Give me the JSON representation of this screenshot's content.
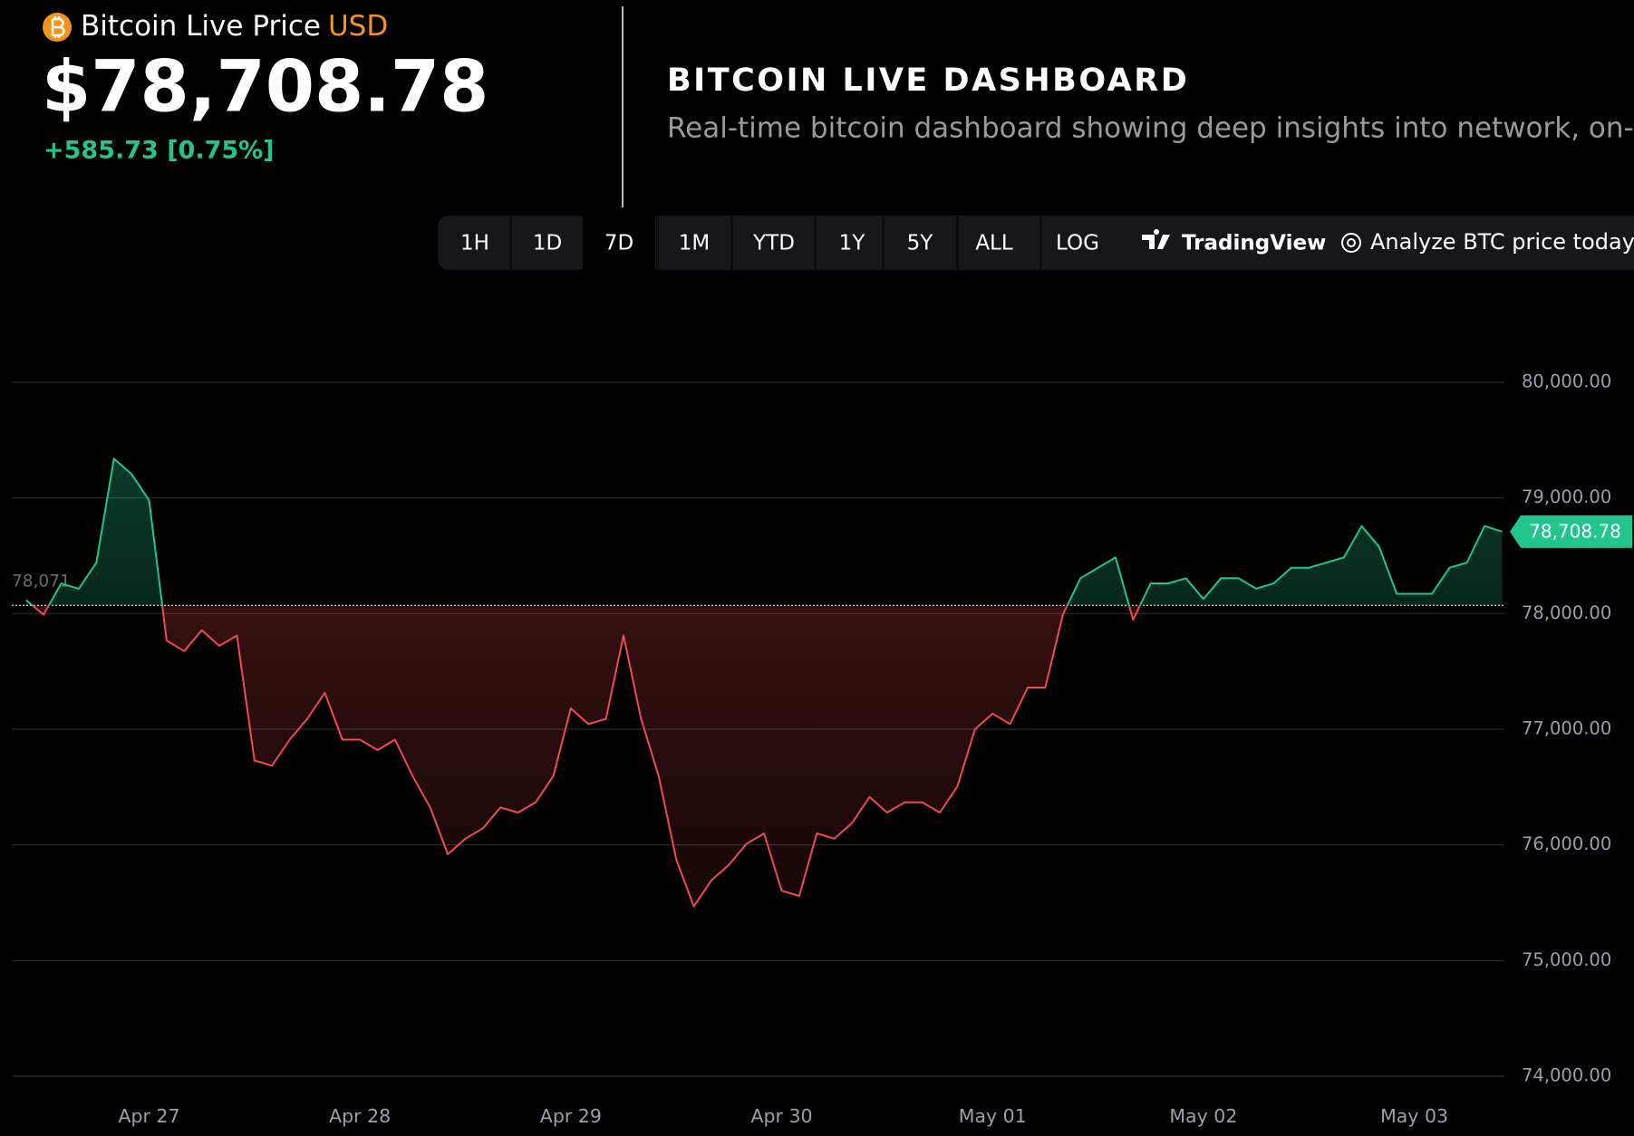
{
  "header": {
    "asset": "Bitcoin Live Price",
    "currency": "USD",
    "price": "$78,708.78",
    "change": "+585.73 [0.75%]"
  },
  "dashboard": {
    "title": "BITCOIN LIVE DASHBOARD",
    "subtitle": "Real-time bitcoin dashboard showing deep insights into network, on-cha"
  },
  "toolbar": {
    "ranges": [
      "1H",
      "1D",
      "7D",
      "1M",
      "YTD",
      "1Y",
      "5Y",
      "ALL",
      "LOG"
    ],
    "selected_range": "7D",
    "tradingview": "TradingView",
    "analyze": "Analyze BTC price today"
  },
  "chart_data": {
    "type": "line",
    "series": [
      {
        "name": "BTC/USD",
        "color": "#22c58b",
        "below_color": "#f2494e",
        "values": [
          78117,
          77990,
          78260,
          78215,
          78440,
          79340,
          79207,
          78980,
          77766,
          77676,
          77856,
          77721,
          77811,
          76730,
          76685,
          76910,
          77090,
          77315,
          76910,
          76910,
          76820,
          76910,
          76595,
          76324,
          75919,
          76054,
          76144,
          76324,
          76279,
          76369,
          76595,
          77180,
          77045,
          77090,
          77811,
          77090,
          76595,
          75874,
          75468,
          75694,
          75829,
          76009,
          76099,
          75604,
          75559,
          76099,
          76054,
          76189,
          76414,
          76279,
          76369,
          76369,
          76279,
          76505,
          77000,
          77135,
          77045,
          77360,
          77360,
          77991,
          78306,
          78396,
          78486,
          77946,
          78261,
          78261,
          78306,
          78126,
          78306,
          78306,
          78216,
          78261,
          78396,
          78396,
          78441,
          78486,
          78757,
          78577,
          78171,
          78171,
          78171,
          78396,
          78441,
          78757,
          78708.78
        ]
      }
    ],
    "baseline": {
      "value": 78071,
      "label": "78,071"
    },
    "last_price": {
      "value": 78708.78,
      "label": "78,708.78"
    },
    "xlim": [
      0,
      84
    ],
    "xticks": [
      {
        "value": 7,
        "label": "Apr 27"
      },
      {
        "value": 19,
        "label": "Apr 28"
      },
      {
        "value": 31,
        "label": "Apr 29"
      },
      {
        "value": 43,
        "label": "Apr 30"
      },
      {
        "value": 55,
        "label": "May 01"
      },
      {
        "value": 67,
        "label": "May 02"
      },
      {
        "value": 79,
        "label": "May 03"
      }
    ],
    "ylim": [
      74000,
      80000
    ],
    "yticks": [
      {
        "value": 74000,
        "label": "74,000.00"
      },
      {
        "value": 75000,
        "label": "75,000.00"
      },
      {
        "value": 76000,
        "label": "76,000.00"
      },
      {
        "value": 77000,
        "label": "77,000.00"
      },
      {
        "value": 78000,
        "label": "78,000.00"
      },
      {
        "value": 79000,
        "label": "79,000.00"
      },
      {
        "value": 80000,
        "label": "80,000.00"
      }
    ],
    "grid": true
  }
}
